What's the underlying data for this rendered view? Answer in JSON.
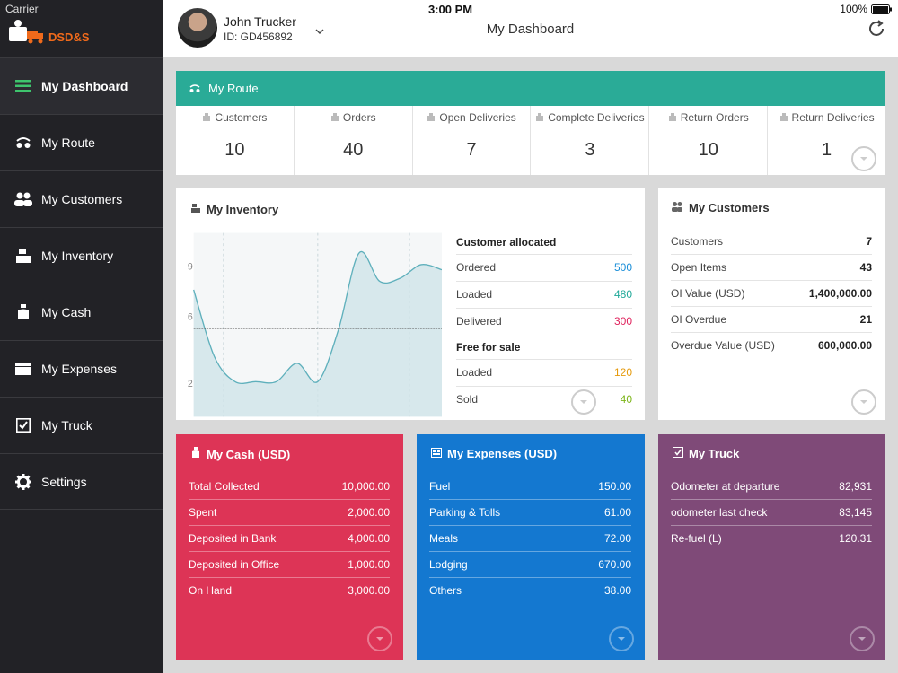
{
  "status_bar": {
    "carrier": "Carrier",
    "time": "3:00 PM",
    "battery": "100%"
  },
  "brand": {
    "name": "DSD&S"
  },
  "sidebar": {
    "items": [
      {
        "label": "My Dashboard",
        "icon": "menu-icon",
        "active": true
      },
      {
        "label": "My Route",
        "icon": "route-icon"
      },
      {
        "label": "My Customers",
        "icon": "customers-icon"
      },
      {
        "label": "My Inventory",
        "icon": "inventory-icon"
      },
      {
        "label": "My Cash",
        "icon": "cash-icon"
      },
      {
        "label": "My Expenses",
        "icon": "expenses-icon"
      },
      {
        "label": "My Truck",
        "icon": "truck-check-icon"
      },
      {
        "label": "Settings",
        "icon": "gear-icon"
      }
    ]
  },
  "header": {
    "user_name": "John Trucker",
    "user_id": "ID: GD456892",
    "title": "My Dashboard"
  },
  "route": {
    "title": "My Route",
    "stats": [
      {
        "label": "Customers",
        "value": "10"
      },
      {
        "label": "Orders",
        "value": "40"
      },
      {
        "label": "Open Deliveries",
        "value": "7"
      },
      {
        "label": "Complete Deliveries",
        "value": "3"
      },
      {
        "label": "Return Orders",
        "value": "10"
      },
      {
        "label": "Return Deliveries",
        "value": "1"
      }
    ]
  },
  "inventory": {
    "title": "My Inventory",
    "allocated_label": "Customer allocated",
    "allocated": [
      {
        "label": "Ordered",
        "value": "500",
        "color": "#1a8ed8"
      },
      {
        "label": "Loaded",
        "value": "480",
        "color": "#1fa898"
      },
      {
        "label": "Delivered",
        "value": "300",
        "color": "#e0245e"
      }
    ],
    "free_label": "Free for sale",
    "free": [
      {
        "label": "Loaded",
        "value": "120",
        "color": "#e59a0c"
      },
      {
        "label": "Sold",
        "value": "40",
        "color": "#7cb518"
      }
    ],
    "chart_data": {
      "type": "area",
      "y_ticks": [
        "2",
        "6",
        "9"
      ],
      "ylim": [
        0,
        11
      ],
      "x": [
        0,
        1,
        2,
        3,
        4,
        5,
        6,
        7,
        8,
        9,
        10,
        11,
        12
      ],
      "values": [
        7.6,
        3.6,
        2.1,
        2.1,
        2.1,
        3.2,
        2.1,
        5.2,
        9.8,
        8.1,
        8.3,
        9.1,
        8.8
      ],
      "reference_value": 5.3
    }
  },
  "customers": {
    "title": "My Customers",
    "rows": [
      {
        "label": "Customers",
        "value": "7"
      },
      {
        "label": "Open Items",
        "value": "43"
      },
      {
        "label": "OI Value (USD)",
        "value": "1,400,000.00"
      },
      {
        "label": "OI Overdue",
        "value": "21"
      },
      {
        "label": "Overdue Value (USD)",
        "value": "600,000.00"
      }
    ]
  },
  "cash": {
    "title": "My Cash (USD)",
    "rows": [
      {
        "label": "Total Collected",
        "value": "10,000.00"
      },
      {
        "label": "Spent",
        "value": "2,000.00"
      },
      {
        "label": "Deposited in Bank",
        "value": "4,000.00"
      },
      {
        "label": "Deposited in Office",
        "value": "1,000.00"
      },
      {
        "label": "On Hand",
        "value": "3,000.00"
      }
    ]
  },
  "expenses": {
    "title": "My Expenses (USD)",
    "rows": [
      {
        "label": "Fuel",
        "value": "150.00"
      },
      {
        "label": "Parking & Tolls",
        "value": "61.00"
      },
      {
        "label": "Meals",
        "value": "72.00"
      },
      {
        "label": "Lodging",
        "value": "670.00"
      },
      {
        "label": "Others",
        "value": "38.00"
      }
    ]
  },
  "truck": {
    "title": "My Truck",
    "rows": [
      {
        "label": "Odometer at departure",
        "value": "82,931"
      },
      {
        "label": "odometer last check",
        "value": "83,145"
      },
      {
        "label": "Re-fuel (L)",
        "value": "120.31"
      }
    ]
  },
  "colors": {
    "route": "#2aab97",
    "cash": "#dd3456",
    "expenses": "#1478d0",
    "truck": "#7f4a78",
    "brand": "#f06a1b",
    "sidebar": "#222226"
  }
}
